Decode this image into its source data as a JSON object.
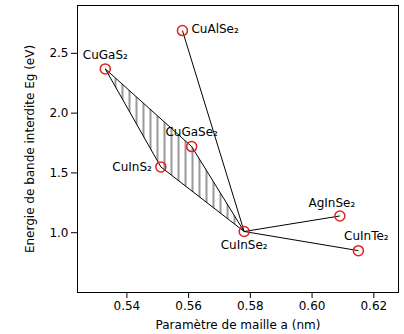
{
  "chart_data": {
    "type": "scatter",
    "x_label": "Paramètre de maille a (nm)",
    "y_label": "Energie de bande interdite Eg (eV)",
    "xlim": [
      0.524,
      0.628
    ],
    "ylim": [
      0.5,
      2.9
    ],
    "xticks": [
      0.54,
      0.56,
      0.58,
      {
        "value": 0.6,
        "label": "0.60"
      },
      0.62
    ],
    "yticks": [
      {
        "value": 1,
        "label": "1.0"
      },
      1.5,
      {
        "value": 2,
        "label": "2.0"
      },
      2.5
    ],
    "color": "#e3211c",
    "marker": "circle",
    "points": [
      {
        "name": "CuGaS₂",
        "a": 0.533,
        "eg": 2.37
      },
      {
        "name": "CuAlSe₂",
        "a": 0.558,
        "eg": 2.69
      },
      {
        "name": "CuGaSe₂",
        "a": 0.561,
        "eg": 1.72
      },
      {
        "name": "CuInS₂",
        "a": 0.551,
        "eg": 1.55
      },
      {
        "name": "CuInSe₂",
        "a": 0.578,
        "eg": 1.01
      },
      {
        "name": "AgInSe₂",
        "a": 0.609,
        "eg": 1.14
      },
      {
        "name": "CuInTe₂",
        "a": 0.615,
        "eg": 0.85
      }
    ],
    "links": [
      [
        "CuGaS₂",
        "CuGaSe₂"
      ],
      [
        "CuGaSe₂",
        "CuInSe₂"
      ],
      [
        "CuInSe₂",
        "CuInS₂"
      ],
      [
        "CuInS₂",
        "CuGaS₂"
      ],
      [
        "CuAlSe₂",
        "CuInSe₂"
      ],
      [
        "AgInSe₂",
        "CuInSe₂"
      ],
      [
        "CuInTe₂",
        "CuInSe₂"
      ]
    ],
    "hatched_region": [
      "CuGaS₂",
      "CuGaSe₂",
      "CuInSe₂",
      "CuInS₂"
    ]
  }
}
